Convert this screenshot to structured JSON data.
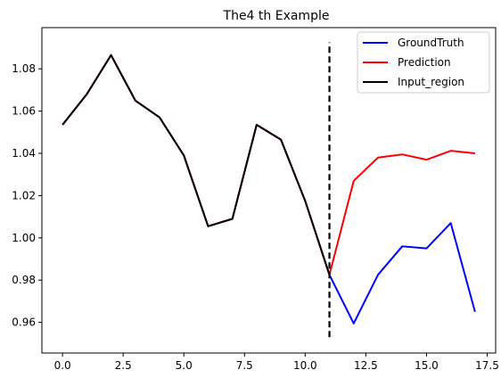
{
  "chart_data": {
    "type": "line",
    "title": "The4 th Example",
    "xlabel": "",
    "ylabel": "",
    "xlim": [
      -0.85,
      17.85
    ],
    "ylim": [
      0.9455,
      1.0995
    ],
    "xticks": [
      0.0,
      2.5,
      5.0,
      7.5,
      10.0,
      12.5,
      15.0,
      17.5
    ],
    "xtick_labels": [
      "0.0",
      "2.5",
      "5.0",
      "7.5",
      "10.0",
      "12.5",
      "15.0",
      "17.5"
    ],
    "yticks": [
      0.96,
      0.98,
      1.0,
      1.02,
      1.04,
      1.06,
      1.08
    ],
    "ytick_labels": [
      "0.96",
      "0.98",
      "1.00",
      "1.02",
      "1.04",
      "1.06",
      "1.08"
    ],
    "grid": false,
    "legend_position": "top-right",
    "series": [
      {
        "name": "GroundTruth",
        "color": "#0000ff",
        "x": [
          0,
          1,
          2,
          3,
          4,
          5,
          6,
          7,
          8,
          9,
          10,
          11,
          12,
          13,
          14,
          15,
          16,
          17
        ],
        "y": [
          1.0535,
          1.068,
          1.0865,
          1.065,
          1.057,
          1.039,
          1.0055,
          1.009,
          1.0535,
          1.0465,
          1.0175,
          0.9825,
          0.9595,
          0.9825,
          0.996,
          0.995,
          1.007,
          0.965
        ]
      },
      {
        "name": "Prediction",
        "color": "#ff0000",
        "x": [
          0,
          1,
          2,
          3,
          4,
          5,
          6,
          7,
          8,
          9,
          10,
          11,
          12,
          13,
          14,
          15,
          16,
          17
        ],
        "y": [
          1.0535,
          1.068,
          1.0865,
          1.065,
          1.057,
          1.039,
          1.0055,
          1.009,
          1.0535,
          1.0465,
          1.0175,
          0.9825,
          1.027,
          1.038,
          1.0395,
          1.037,
          1.0412,
          1.04
        ]
      },
      {
        "name": "Input_region",
        "color": "#000000",
        "x": [
          0,
          1,
          2,
          3,
          4,
          5,
          6,
          7,
          8,
          9,
          10,
          11
        ],
        "y": [
          1.0535,
          1.068,
          1.0865,
          1.065,
          1.057,
          1.039,
          1.0055,
          1.009,
          1.0535,
          1.0465,
          1.0175,
          0.9825
        ]
      }
    ],
    "vline": {
      "x": 11,
      "y_from": 0.953,
      "y_to": 1.0925,
      "color": "#000000",
      "style": "dashed"
    }
  }
}
